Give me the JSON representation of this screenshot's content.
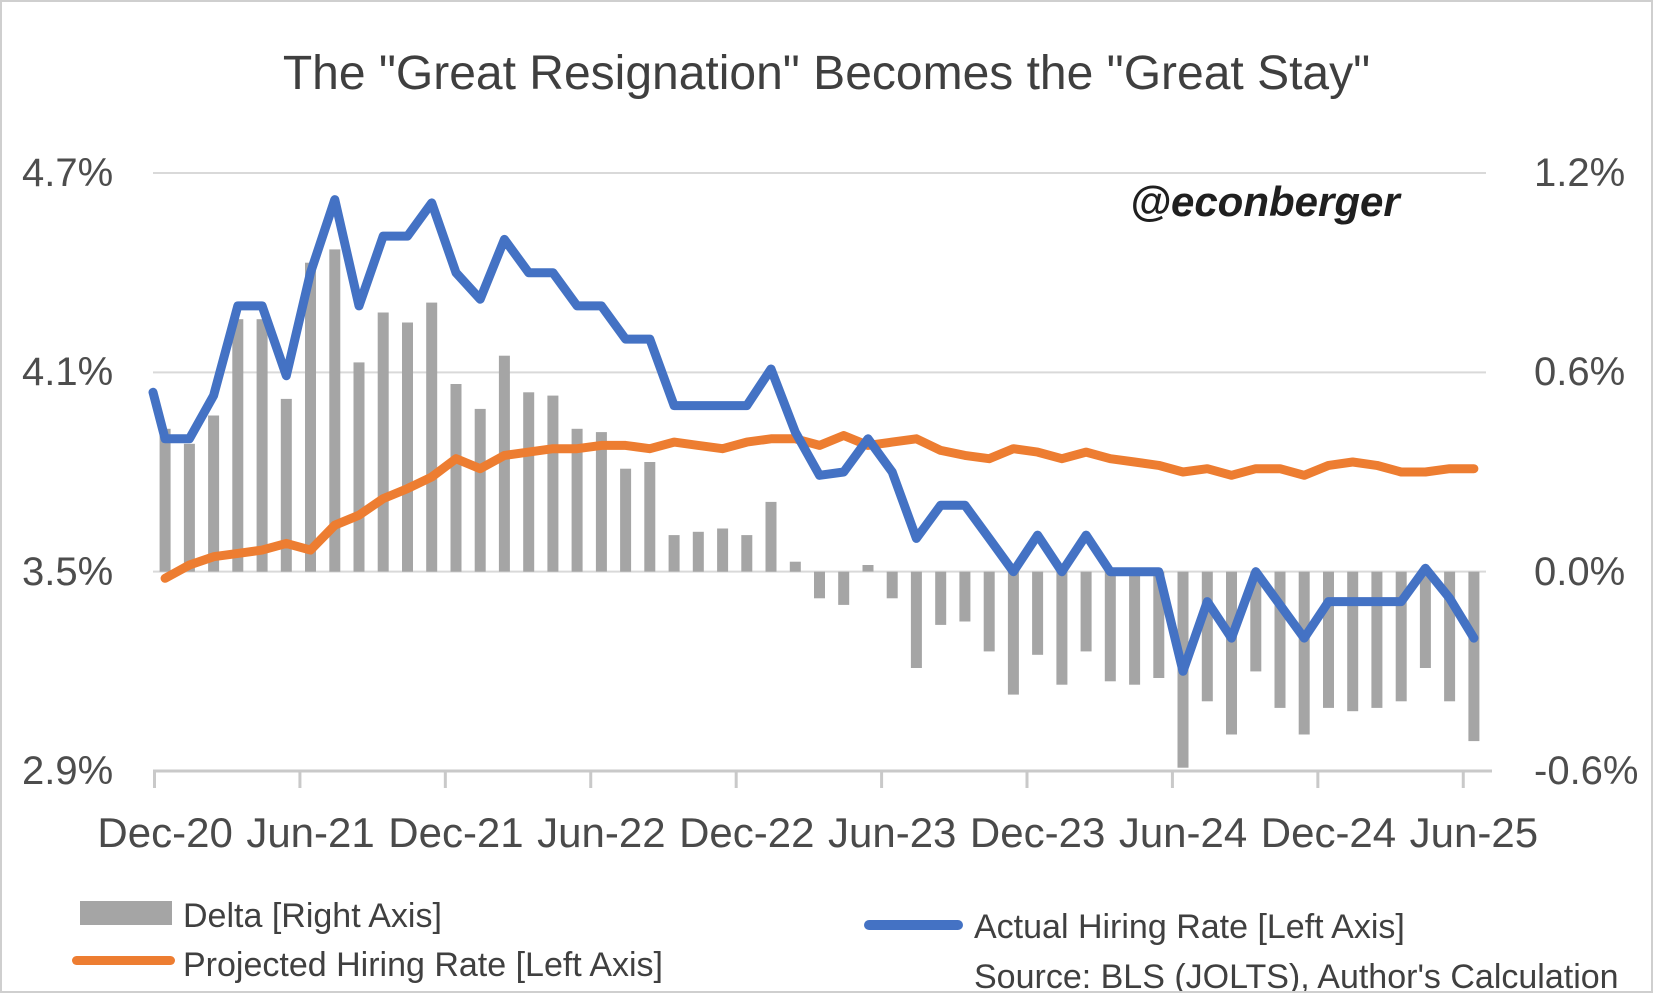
{
  "title": "The \"Great Resignation\" Becomes the \"Great Stay\"",
  "watermark": "@econberger",
  "source_note": "Source: BLS (JOLTS), Author's Calculation",
  "legend": {
    "delta_label": "Delta [Right Axis]",
    "projected_label": "Projected Hiring Rate [Left Axis]",
    "actual_label": "Actual Hiring Rate [Left Axis]"
  },
  "chart_data": {
    "type": "combo",
    "title": "The \"Great Resignation\" Becomes the \"Great Stay\"",
    "x_tick_labels": [
      "Dec-20",
      "Jun-21",
      "Dec-21",
      "Jun-22",
      "Dec-22",
      "Jun-23",
      "Dec-23",
      "Jun-24",
      "Dec-24",
      "Jun-25"
    ],
    "months": [
      "Dec-20",
      "Jan-21",
      "Feb-21",
      "Mar-21",
      "Apr-21",
      "May-21",
      "Jun-21",
      "Jul-21",
      "Aug-21",
      "Sep-21",
      "Oct-21",
      "Nov-21",
      "Dec-21",
      "Jan-22",
      "Feb-22",
      "Mar-22",
      "Apr-22",
      "May-22",
      "Jun-22",
      "Jul-22",
      "Aug-22",
      "Sep-22",
      "Oct-22",
      "Nov-22",
      "Dec-22",
      "Jan-23",
      "Feb-23",
      "Mar-23",
      "Apr-23",
      "May-23",
      "Jun-23",
      "Jul-23",
      "Aug-23",
      "Sep-23",
      "Oct-23",
      "Nov-23",
      "Dec-23",
      "Jan-24",
      "Feb-24",
      "Mar-24",
      "Apr-24",
      "May-24",
      "Jun-24",
      "Jul-24",
      "Aug-24",
      "Sep-24",
      "Oct-24",
      "Nov-24",
      "Dec-24",
      "Jan-25",
      "Feb-25",
      "Mar-25",
      "Apr-25",
      "May-25",
      "Jun-25"
    ],
    "left_axis": {
      "ticks": [
        "4.7%",
        "4.1%",
        "3.5%",
        "2.9%"
      ],
      "max": 4.7,
      "min": 2.9
    },
    "right_axis": {
      "ticks": [
        "1.2%",
        "0.6%",
        "0.0%",
        "-0.6%"
      ],
      "max": 1.2,
      "min": -0.6
    },
    "grid": true,
    "legend_position": "bottom",
    "series": [
      {
        "name": "Actual Hiring Rate [Left Axis]",
        "type": "line",
        "axis": "left",
        "color": "#4472C4",
        "edge_start_value": 4.04,
        "values": [
          3.9,
          3.9,
          4.03,
          4.3,
          4.3,
          4.09,
          4.4,
          4.62,
          4.3,
          4.51,
          4.51,
          4.61,
          4.4,
          4.32,
          4.5,
          4.4,
          4.4,
          4.3,
          4.3,
          4.2,
          4.2,
          4.0,
          4.0,
          4.0,
          4.0,
          4.11,
          3.92,
          3.79,
          3.8,
          3.9,
          3.8,
          3.6,
          3.7,
          3.7,
          3.6,
          3.5,
          3.61,
          3.5,
          3.61,
          3.5,
          3.5,
          3.5,
          3.2,
          3.41,
          3.3,
          3.5,
          3.4,
          3.3,
          3.41,
          3.41,
          3.41,
          3.41,
          3.51,
          3.42,
          3.3
        ]
      },
      {
        "name": "Projected Hiring Rate [Left Axis]",
        "type": "line",
        "axis": "left",
        "color": "#ED7D31",
        "values": [
          3.48,
          3.52,
          3.545,
          3.555,
          3.565,
          3.585,
          3.565,
          3.64,
          3.67,
          3.72,
          3.75,
          3.785,
          3.84,
          3.81,
          3.85,
          3.86,
          3.87,
          3.87,
          3.88,
          3.88,
          3.87,
          3.89,
          3.88,
          3.87,
          3.89,
          3.9,
          3.9,
          3.88,
          3.91,
          3.88,
          3.89,
          3.9,
          3.865,
          3.85,
          3.84,
          3.87,
          3.86,
          3.84,
          3.86,
          3.84,
          3.83,
          3.82,
          3.8,
          3.81,
          3.79,
          3.81,
          3.81,
          3.79,
          3.82,
          3.83,
          3.82,
          3.8,
          3.8,
          3.81,
          3.81
        ]
      },
      {
        "name": "Delta [Right Axis]",
        "type": "bar",
        "axis": "right",
        "color": "#A5A5A5",
        "values": [
          0.43,
          0.385,
          0.47,
          0.76,
          0.76,
          0.52,
          0.93,
          0.97,
          0.63,
          0.78,
          0.75,
          0.81,
          0.565,
          0.49,
          0.65,
          0.54,
          0.53,
          0.43,
          0.42,
          0.31,
          0.33,
          0.11,
          0.12,
          0.13,
          0.11,
          0.21,
          0.03,
          -0.08,
          -0.1,
          0.02,
          -0.08,
          -0.29,
          -0.16,
          -0.15,
          -0.24,
          -0.37,
          -0.25,
          -0.34,
          -0.24,
          -0.33,
          -0.34,
          -0.32,
          -0.59,
          -0.39,
          -0.49,
          -0.3,
          -0.41,
          -0.49,
          -0.41,
          -0.42,
          -0.41,
          -0.39,
          -0.29,
          -0.39,
          -0.51
        ]
      }
    ]
  },
  "colors": {
    "actual": "#4472C4",
    "projected": "#ED7D31",
    "delta": "#A5A5A5",
    "gridline": "#D9D9D9",
    "axis_line": "#C9C9C9"
  }
}
